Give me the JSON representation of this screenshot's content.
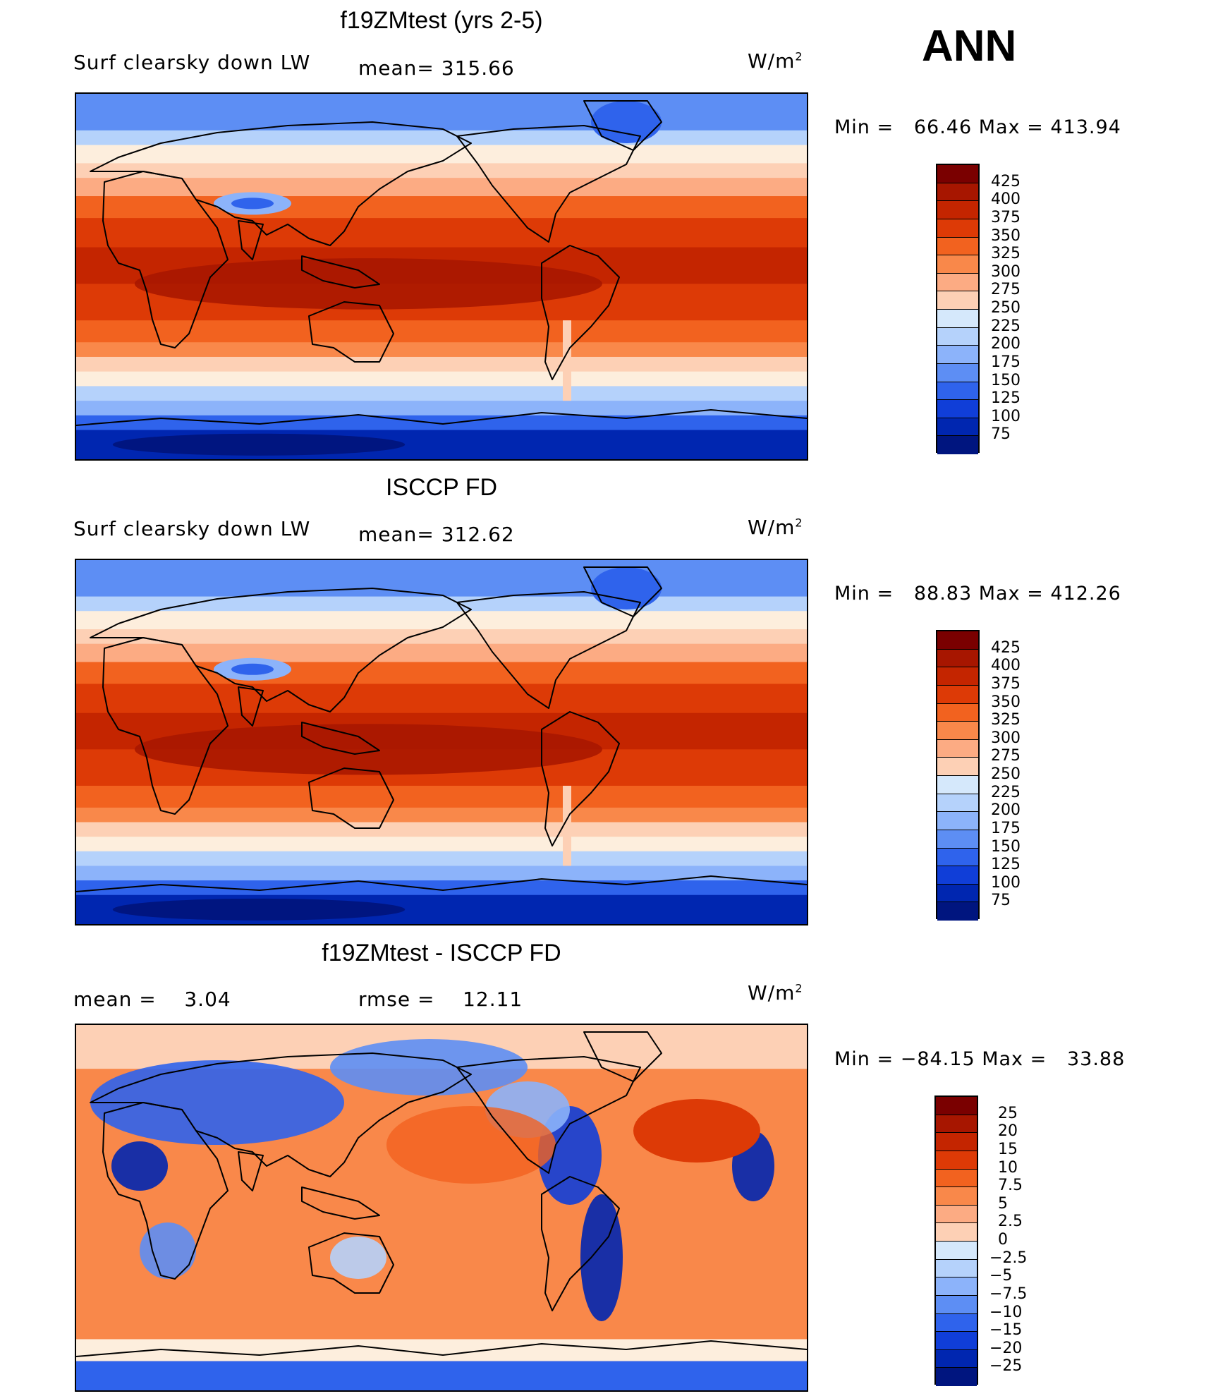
{
  "season": "ANN",
  "panels": [
    {
      "title": "f19ZMtest (yrs 2-5)",
      "left_label": "Surf clearsky down LW",
      "mid_label": "mean= 315.66",
      "units": "W/m",
      "units_exp": "2",
      "minmax": "Min =   66.46 Max = 413.94",
      "kind": "abs",
      "colorbar": [
        "425",
        "400",
        "375",
        "350",
        "325",
        "300",
        "275",
        "250",
        "225",
        "200",
        "175",
        "150",
        "125",
        "100",
        "75"
      ],
      "colors": [
        "#7a0000",
        "#a71600",
        "#c42500",
        "#dd3a06",
        "#f2621f",
        "#f9884a",
        "#fcab83",
        "#fdd0b5",
        "#fdeedd",
        "#d5e8fb",
        "#b5d2fb",
        "#8cb3fa",
        "#5d8ef4",
        "#2f63ec",
        "#103ed8",
        "#0026b0",
        "#00157f"
      ]
    },
    {
      "title": "ISCCP FD",
      "left_label": "Surf clearsky down LW",
      "mid_label": "mean= 312.62",
      "units": "W/m",
      "units_exp": "2",
      "minmax": "Min =   88.83 Max = 412.26",
      "kind": "abs",
      "colorbar": [
        "425",
        "400",
        "375",
        "350",
        "325",
        "300",
        "275",
        "250",
        "225",
        "200",
        "175",
        "150",
        "125",
        "100",
        "75"
      ],
      "colors": [
        "#7a0000",
        "#a71600",
        "#c42500",
        "#dd3a06",
        "#f2621f",
        "#f9884a",
        "#fcab83",
        "#fdd0b5",
        "#fdeedd",
        "#d5e8fb",
        "#b5d2fb",
        "#8cb3fa",
        "#5d8ef4",
        "#2f63ec",
        "#103ed8",
        "#0026b0",
        "#00157f"
      ]
    },
    {
      "title": "f19ZMtest - ISCCP FD",
      "left_label": "mean =    3.04",
      "mid_label": "rmse =    12.11",
      "units": "W/m",
      "units_exp": "2",
      "minmax": "Min = −84.15 Max =   33.88",
      "kind": "diff",
      "colorbar": [
        "25",
        "20",
        "15",
        "10",
        "7.5",
        "5",
        "2.5",
        "0",
        "−2.5",
        "−5",
        "−7.5",
        "−10",
        "−15",
        "−20",
        "−25"
      ],
      "colors": [
        "#7a0000",
        "#a71600",
        "#c42500",
        "#dd3a06",
        "#f2621f",
        "#f9884a",
        "#fcab83",
        "#fdd0b5",
        "#fdeedd",
        "#d5e8fb",
        "#b5d2fb",
        "#8cb3fa",
        "#5d8ef4",
        "#2f63ec",
        "#103ed8",
        "#0026b0",
        "#00157f"
      ]
    }
  ]
}
